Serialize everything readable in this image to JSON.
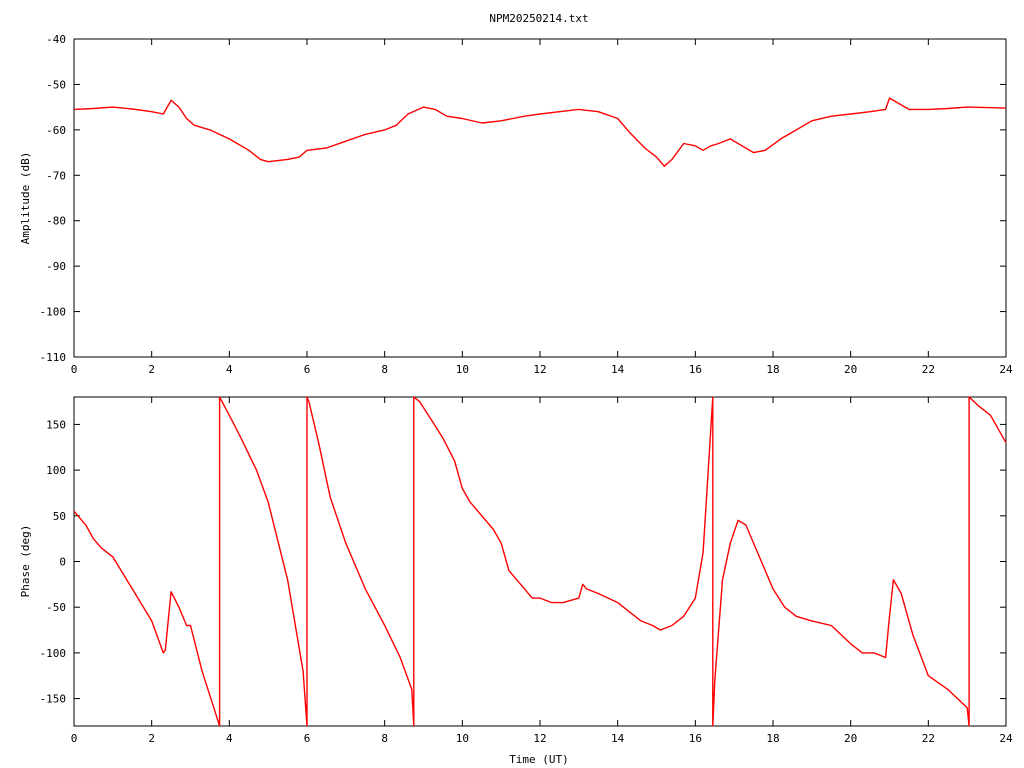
{
  "title": "NPM20250214.txt",
  "chart_data": [
    {
      "type": "line",
      "ylabel": "Amplitude (dB)",
      "xlabel": "",
      "xlim": [
        0,
        24
      ],
      "ylim": [
        -110,
        -40
      ],
      "xticks": [
        "0",
        "2",
        "4",
        "6",
        "8",
        "10",
        "12",
        "14",
        "16",
        "18",
        "20",
        "22",
        "24"
      ],
      "yticks": [
        "-40",
        "-50",
        "-60",
        "-70",
        "-80",
        "-90",
        "-100",
        "-110"
      ],
      "grid": false,
      "series": [
        {
          "color": "#ff0000",
          "x": [
            0,
            0.5,
            1,
            1.5,
            2,
            2.3,
            2.4,
            2.5,
            2.7,
            2.9,
            3.1,
            3.5,
            4,
            4.5,
            4.8,
            5,
            5.5,
            5.8,
            6,
            6.5,
            7,
            7.5,
            8,
            8.3,
            8.6,
            9,
            9.3,
            9.6,
            10,
            10.5,
            11,
            11.3,
            11.6,
            12,
            12.5,
            13,
            13.5,
            14,
            14.3,
            14.7,
            15,
            15.2,
            15.4,
            15.7,
            16,
            16.2,
            16.4,
            16.6,
            16.9,
            17.2,
            17.5,
            17.8,
            18.2,
            18.6,
            19,
            19.5,
            20,
            20.5,
            20.9,
            21,
            21.2,
            21.5,
            22,
            22.5,
            23,
            23.5,
            24
          ],
          "y": [
            -55.5,
            -55.3,
            -55,
            -55.4,
            -56,
            -56.5,
            -55,
            -53.5,
            -55,
            -57.5,
            -59,
            -60,
            -62,
            -64.5,
            -66.5,
            -67,
            -66.5,
            -66,
            -64.5,
            -64,
            -62.5,
            -61,
            -60,
            -59,
            -56.5,
            -55,
            -55.5,
            -57,
            -57.5,
            -58.5,
            -58,
            -57.5,
            -57,
            -56.5,
            -56,
            -55.5,
            -56,
            -57.5,
            -60.5,
            -64,
            -66,
            -68,
            -66.5,
            -63,
            -63.5,
            -64.5,
            -63.5,
            -63,
            -62,
            -63.5,
            -65,
            -64.5,
            -62,
            -60,
            -58,
            -57,
            -56.5,
            -56,
            -55.5,
            -53,
            -54,
            -55.5,
            -55.5,
            -55.3,
            -55,
            -55.1,
            -55.2
          ]
        }
      ]
    },
    {
      "type": "line",
      "ylabel": "Phase (deg)",
      "xlabel": "Time (UT)",
      "xlim": [
        0,
        24
      ],
      "ylim": [
        -180,
        180
      ],
      "xticks": [
        "0",
        "2",
        "4",
        "6",
        "8",
        "10",
        "12",
        "14",
        "16",
        "18",
        "20",
        "22",
        "24"
      ],
      "yticks": [
        "150",
        "100",
        "50",
        "0",
        "-50",
        "-100",
        "-150"
      ],
      "grid": false,
      "series": [
        {
          "color": "#ff0000",
          "x": [
            0,
            0.3,
            0.5,
            0.7,
            1,
            1.5,
            2,
            2.3,
            2.35,
            2.5,
            2.7,
            2.9,
            3.0,
            3.3,
            3.6,
            3.75,
            3.75,
            4,
            4.3,
            4.7,
            5,
            5.5,
            5.9,
            6.0,
            6.0,
            6.05,
            6.3,
            6.6,
            7,
            7.5,
            8,
            8.4,
            8.7,
            8.75,
            8.75,
            8.9,
            9.2,
            9.5,
            9.8,
            10,
            10.2,
            10.5,
            10.8,
            11,
            11.2,
            11.5,
            11.8,
            12,
            12.3,
            12.6,
            13,
            13.1,
            13.2,
            13.5,
            14,
            14.3,
            14.6,
            14.9,
            15.1,
            15.4,
            15.7,
            16,
            16.2,
            16.45,
            16.45,
            16.5,
            16.7,
            16.9,
            17.1,
            17.3,
            17.6,
            18,
            18.3,
            18.6,
            19,
            19.5,
            20,
            20.3,
            20.6,
            20.9,
            21,
            21.1,
            21.3,
            21.6,
            22,
            22.5,
            23,
            23.05,
            23.05,
            23.3,
            23.6,
            24
          ],
          "y": [
            55,
            40,
            25,
            15,
            5,
            -30,
            -65,
            -100,
            -97,
            -33,
            -50,
            -70,
            -70,
            -120,
            -160,
            -180,
            180,
            160,
            135,
            100,
            65,
            -20,
            -120,
            -180,
            180,
            175,
            130,
            70,
            20,
            -30,
            -70,
            -105,
            -140,
            -180,
            180,
            175,
            155,
            135,
            110,
            80,
            65,
            50,
            35,
            20,
            -10,
            -25,
            -40,
            -40,
            -45,
            -45,
            -40,
            -25,
            -30,
            -35,
            -45,
            -55,
            -65,
            -70,
            -75,
            -70,
            -60,
            -40,
            10,
            180,
            -180,
            -130,
            -20,
            20,
            45,
            40,
            10,
            -30,
            -50,
            -60,
            -65,
            -70,
            -90,
            -100,
            -100,
            -105,
            -60,
            -20,
            -35,
            -80,
            -125,
            -140,
            -160,
            -180,
            180,
            170,
            160,
            130
          ]
        }
      ]
    }
  ]
}
